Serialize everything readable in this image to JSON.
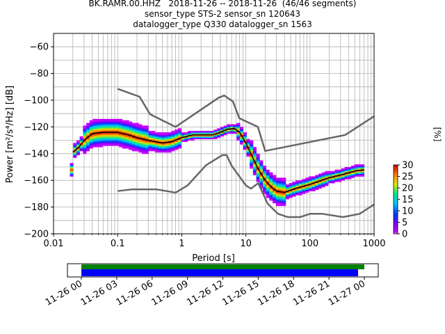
{
  "title": {
    "line1": "BK.RAMR.00.HHZ   2018-11-26 -- 2018-11-26  (46/46 segments)",
    "line2": "sensor_type STS-2 sensor_sn 120643",
    "line3": "datalogger_type Q330 datalogger_sn 1563"
  },
  "colors": {
    "noise_model": "#666666",
    "mode_line": "#000000",
    "grid": "#b0b0b0",
    "coverage_green": "#008000",
    "coverage_blue": "#0000ff"
  },
  "colorbar": {
    "label": "[%]",
    "ticks": [
      "0",
      "5",
      "10",
      "15",
      "20",
      "25",
      "30"
    ],
    "range": [
      0,
      30
    ]
  },
  "coverage": {
    "tick_labels": [
      "11-26 00",
      "11-26 03",
      "11-26 06",
      "11-26 09",
      "11-26 12",
      "11-26 15",
      "11-26 18",
      "11-26 21",
      "11-27 00"
    ]
  },
  "chart_data": {
    "type": "heatmap",
    "xlabel": "Period [s]",
    "ylabel": "Power [m²/s⁴/Hz] [dB]",
    "x_scale": "log",
    "xlim": [
      0.01,
      1000
    ],
    "ylim": [
      -200,
      -50
    ],
    "x_tick_labels": [
      "0.01",
      "0.1",
      "1",
      "10",
      "100",
      "1000"
    ],
    "y_tick_labels": [
      "−200",
      "−180",
      "−160",
      "−140",
      "−120",
      "−100",
      "−80",
      "−60"
    ],
    "grid": true,
    "noise_models": {
      "high": {
        "period": [
          0.1,
          0.22,
          0.32,
          0.8,
          3.8,
          4.6,
          6.3,
          7.9,
          15.4,
          20,
          354.8,
          1000
        ],
        "power": [
          -91.5,
          -97.4,
          -110.5,
          -120,
          -98,
          -96.5,
          -101,
          -113.5,
          -120,
          -138,
          -126,
          -112
        ]
      },
      "low": {
        "period": [
          0.1,
          0.17,
          0.4,
          0.8,
          1.24,
          2.4,
          4.3,
          5,
          6,
          10,
          12,
          15.6,
          21.9,
          31.6,
          45,
          70,
          101,
          154,
          328,
          600,
          1000
        ],
        "power": [
          -168,
          -166.7,
          -166.7,
          -169.2,
          -163.7,
          -148.6,
          -141.1,
          -141.1,
          -149,
          -163.8,
          -166.2,
          -162.1,
          -177.5,
          -185,
          -187.5,
          -187.5,
          -185,
          -185,
          -187.5,
          -185,
          -178
        ]
      }
    },
    "mode": {
      "period": [
        0.02,
        0.025,
        0.03,
        0.04,
        0.06,
        0.1,
        0.15,
        0.2,
        0.3,
        0.5,
        0.7,
        1,
        1.5,
        2,
        3,
        4,
        5,
        6.5,
        8,
        10,
        12,
        15,
        20,
        25,
        30,
        40,
        60,
        100,
        150,
        200,
        300,
        500,
        700
      ],
      "power": [
        -139,
        -135,
        -130,
        -125,
        -124,
        -124,
        -126,
        -128,
        -130,
        -132,
        -131,
        -128,
        -126,
        -126,
        -126,
        -124,
        -122,
        -121,
        -124,
        -132,
        -140,
        -150,
        -160,
        -165,
        -168,
        -169,
        -166,
        -163,
        -160,
        -158,
        -156,
        -153,
        -152
      ]
    }
  }
}
